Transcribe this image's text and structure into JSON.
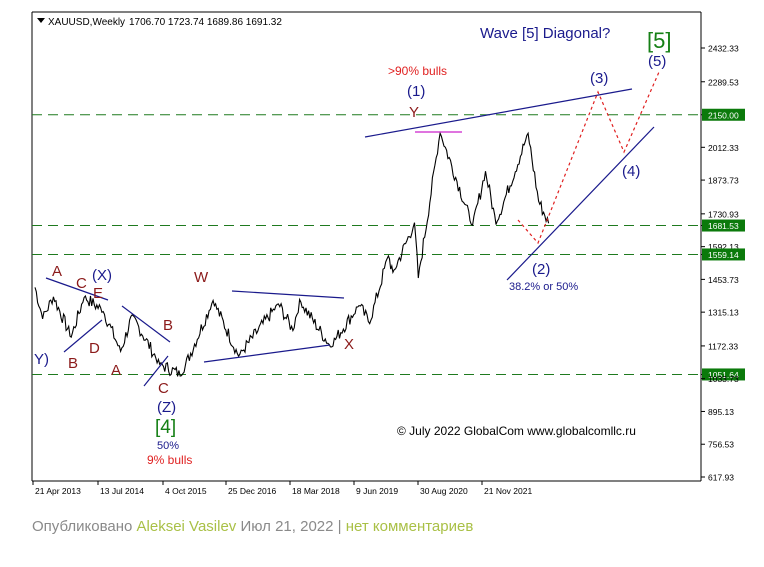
{
  "header": {
    "symbol": "XAUUSD,Weekly",
    "ohlc": "1706.70 1723.74 1689.86 1691.32",
    "title": "Wave [5]  Diagonal?",
    "title_label": "[5]"
  },
  "y_ticks": [
    "2432.33",
    "2289.53",
    "2150.00",
    "2012.33",
    "1873.73",
    "1730.93",
    "1681.53",
    "1592.13",
    "1559.14",
    "1453.73",
    "1315.13",
    "1172.33",
    "1051.64",
    "1033.73",
    "895.13",
    "756.53",
    "617.93"
  ],
  "level_labels": [
    "2150.00",
    "1681.53",
    "1559.14",
    "1051.64"
  ],
  "x_ticks": [
    "21 Apr 2013",
    "13 Jul 2014",
    "4 Oct 2015",
    "25 Dec 2016",
    "18 Mar 2018",
    "9 Jun 2019",
    "30 Aug 2020",
    "21 Nov 2021"
  ],
  "wave_labels": {
    "y_left": "Y)",
    "a1": "A",
    "c1": "C",
    "x_blue": "(X)",
    "e1": "E",
    "d1": "D",
    "b1": "B",
    "a2": "A",
    "b2": "B",
    "c2": "C",
    "z": "(Z)",
    "four": "[4]",
    "pct50": "50%",
    "bulls9": "9% bulls",
    "w": "W",
    "x": "X",
    "bulls90": ">90% bulls",
    "one": "(1)",
    "y": "Y",
    "two": "(2)",
    "retr": "38.2% or 50%",
    "three": "(3)",
    "four_small": "(4)",
    "five": "(5)"
  },
  "watermark": "© July 2022 GlobalCom www.globalcomllc.ru",
  "footer": {
    "prefix": "Опубликовано",
    "author": "Aleksei Vasilev",
    "date": "Июл 21, 2022",
    "sep": "|",
    "comments": "нет комментариев"
  },
  "colors": {
    "price": "#000000",
    "level_line": "#1f7a1f",
    "level_box": "#0b7a0b",
    "wave_blue": "#1a1a8c",
    "wave_red": "#8b1a1a",
    "projection": "#e02020",
    "green_label": "#168016",
    "magenta": "#cc22cc"
  },
  "chart_data": {
    "type": "line",
    "title": "Wave [5]  Diagonal?",
    "series": [
      {
        "name": "XAUUSD,Weekly",
        "points": [
          [
            "2013-04-21",
            1420
          ],
          [
            "2013-06-10",
            1290
          ],
          [
            "2013-08-20",
            1380
          ],
          [
            "2013-12-15",
            1210
          ],
          [
            "2014-03-10",
            1380
          ],
          [
            "2014-07-13",
            1320
          ],
          [
            "2014-11-05",
            1150
          ],
          [
            "2015-01-20",
            1300
          ],
          [
            "2015-07-20",
            1095
          ],
          [
            "2015-12-10",
            1050
          ],
          [
            "2016-07-05",
            1365
          ],
          [
            "2016-12-20",
            1130
          ],
          [
            "2017-09-08",
            1350
          ],
          [
            "2017-12-12",
            1240
          ],
          [
            "2018-01-25",
            1365
          ],
          [
            "2018-08-16",
            1170
          ],
          [
            "2019-02-20",
            1345
          ],
          [
            "2019-05-01",
            1270
          ],
          [
            "2019-09-01",
            1555
          ],
          [
            "2019-10-01",
            1480
          ],
          [
            "2020-02-20",
            1690
          ],
          [
            "2020-03-16",
            1460
          ],
          [
            "2020-08-06",
            2075
          ],
          [
            "2021-03-08",
            1680
          ],
          [
            "2021-06-01",
            1910
          ],
          [
            "2021-08-09",
            1690
          ],
          [
            "2022-03-08",
            2070
          ],
          [
            "2022-05-16",
            1785
          ],
          [
            "2022-07-21",
            1691
          ]
        ]
      }
    ],
    "ylim": [
      617.93,
      2432.33
    ],
    "yticks": [
      2432.33,
      2289.53,
      2150.0,
      2012.33,
      1873.73,
      1730.93,
      1681.53,
      1592.13,
      1559.14,
      1453.73,
      1315.13,
      1172.33,
      1051.64,
      1033.73,
      895.13,
      756.53,
      617.93
    ],
    "horizontal_levels": [
      2150.0,
      1681.53,
      1559.14,
      1051.64
    ],
    "xticks": [
      "21 Apr 2013",
      "13 Jul 2014",
      "4 Oct 2015",
      "25 Dec 2016",
      "18 Mar 2018",
      "9 Jun 2019",
      "30 Aug 2020",
      "21 Nov 2021"
    ],
    "grid": false,
    "legend": "none"
  }
}
